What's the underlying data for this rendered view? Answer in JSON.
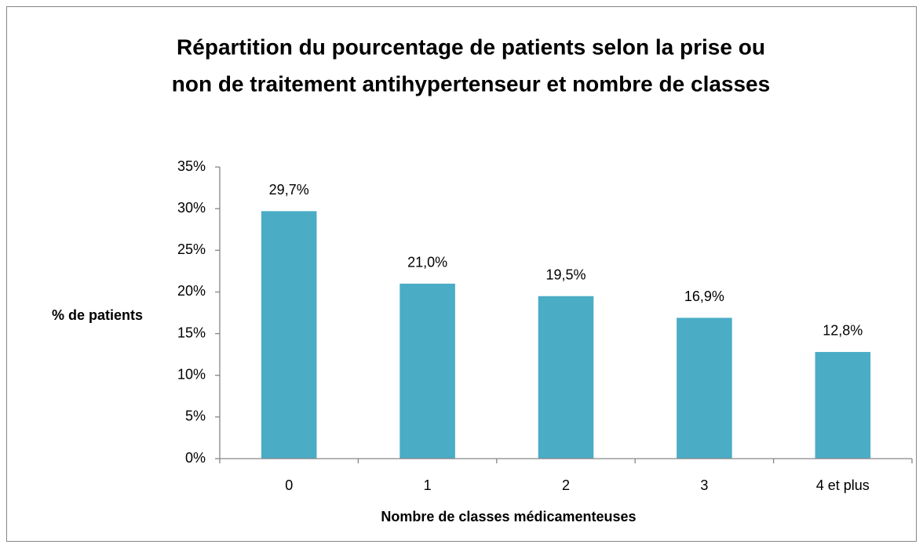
{
  "chart_data": {
    "type": "bar",
    "title": [
      "Répartition du pourcentage de patients selon la prise ou",
      "non de traitement antihypertenseur et nombre de classes"
    ],
    "x_label": "Nombre de classes médicamenteuses",
    "y_label": "% de patients",
    "categories": [
      "0",
      "1",
      "2",
      "3",
      "4 et plus"
    ],
    "values": [
      29.7,
      21.0,
      19.5,
      16.9,
      12.8
    ],
    "value_labels": [
      "29,7%",
      "21,0%",
      "19,5%",
      "16,9%",
      "12,8%"
    ],
    "color": "#4bacc6",
    "ylim": [
      0,
      35
    ],
    "yticks": [
      {
        "value": 0,
        "label": "0%"
      },
      {
        "value": 5,
        "label": "5%"
      },
      {
        "value": 10,
        "label": "10%"
      },
      {
        "value": 15,
        "label": "15%"
      },
      {
        "value": 20,
        "label": "20%"
      },
      {
        "value": 25,
        "label": "25%"
      },
      {
        "value": 30,
        "label": "30%"
      },
      {
        "value": 35,
        "label": "35%"
      }
    ],
    "grid": false
  }
}
